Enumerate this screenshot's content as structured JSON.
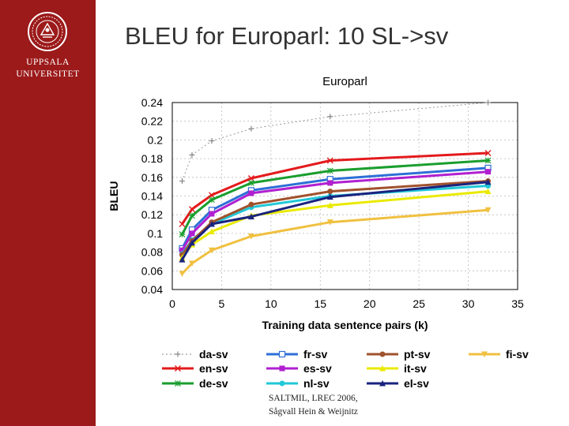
{
  "slide": {
    "title": "BLEU for Europarl: 10 SL->sv",
    "logo_line1": "UPPSALA",
    "logo_line2": "UNIVERSITET",
    "footer_line1": "SALTMIL, LREC 2006,",
    "footer_line2": "Sågvall Hein & Weijnitz",
    "accent_color": "#9c1a1a"
  },
  "chart_data": {
    "type": "line",
    "title": "Europarl",
    "xlabel": "Training data sentence pairs (k)",
    "ylabel": "BLEU",
    "xlim": [
      0,
      35
    ],
    "ylim": [
      0.04,
      0.24
    ],
    "xticks": [
      "0",
      "5",
      "10",
      "15",
      "20",
      "25",
      "30",
      "35"
    ],
    "yticks": [
      "0.04",
      "0.06",
      "0.08",
      "0.1",
      "0.12",
      "0.14",
      "0.16",
      "0.18",
      "0.2",
      "0.22",
      "0.24"
    ],
    "grid": true,
    "legend_position": "bottom",
    "x": [
      1,
      2,
      4,
      8,
      16,
      32
    ],
    "series": [
      {
        "name": "da-sv",
        "color": "#999999",
        "marker": "plus",
        "values": [
          0.156,
          0.184,
          0.199,
          0.212,
          0.225,
          0.24
        ]
      },
      {
        "name": "en-sv",
        "color": "#e31a1c",
        "marker": "x",
        "values": [
          0.11,
          0.126,
          0.141,
          0.159,
          0.178,
          0.186
        ]
      },
      {
        "name": "de-sv",
        "color": "#1a9e2e",
        "marker": "star",
        "values": [
          0.099,
          0.119,
          0.136,
          0.154,
          0.167,
          0.178
        ]
      },
      {
        "name": "fr-sv",
        "color": "#2e6fd6",
        "marker": "square-open",
        "values": [
          0.084,
          0.104,
          0.125,
          0.146,
          0.158,
          0.17
        ]
      },
      {
        "name": "es-sv",
        "color": "#b020d0",
        "marker": "square",
        "values": [
          0.082,
          0.1,
          0.121,
          0.143,
          0.154,
          0.166
        ]
      },
      {
        "name": "nl-sv",
        "color": "#20c8d8",
        "marker": "circle",
        "values": [
          0.078,
          0.093,
          0.11,
          0.128,
          0.14,
          0.151
        ]
      },
      {
        "name": "pt-sv",
        "color": "#a0522d",
        "marker": "circle",
        "values": [
          0.077,
          0.092,
          0.112,
          0.131,
          0.145,
          0.156
        ]
      },
      {
        "name": "it-sv",
        "color": "#eaea00",
        "marker": "triangle",
        "values": [
          0.074,
          0.088,
          0.102,
          0.119,
          0.13,
          0.145
        ]
      },
      {
        "name": "el-sv",
        "color": "#1a237e",
        "marker": "triangle",
        "values": [
          0.072,
          0.09,
          0.11,
          0.118,
          0.139,
          0.155
        ]
      },
      {
        "name": "fi-sv",
        "color": "#f0c040",
        "marker": "triangle-down",
        "values": [
          0.057,
          0.068,
          0.082,
          0.097,
          0.112,
          0.125
        ]
      }
    ]
  }
}
